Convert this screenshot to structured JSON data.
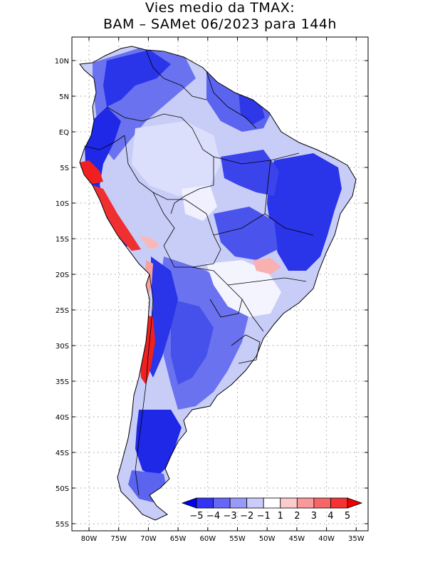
{
  "title": {
    "line1": "Vies medio da TMAX:",
    "line2": "BAM – SAMet 06/2023  para 144h"
  },
  "axes": {
    "x_ticks": [
      "80W",
      "75W",
      "70W",
      "65W",
      "60W",
      "55W",
      "50W",
      "45W",
      "40W",
      "35W"
    ],
    "y_ticks": [
      "10N",
      "5N",
      "EQ",
      "5S",
      "10S",
      "15S",
      "20S",
      "25S",
      "30S",
      "35S",
      "40S",
      "45S",
      "50S",
      "55S"
    ]
  },
  "colorbar": {
    "labels": [
      "−5",
      "−4",
      "−3",
      "−2",
      "−1",
      "1",
      "2",
      "3",
      "4",
      "5"
    ],
    "colors": [
      "#0000f0",
      "#3333f5",
      "#6666f7",
      "#9999fa",
      "#ccccfc",
      "#ffffff",
      "#fccccc",
      "#fa9999",
      "#f76666",
      "#f53333",
      "#f00000"
    ]
  },
  "palette": {
    "strong_blue": "#1e28e6",
    "mid_blue": "#5a64ee",
    "light_blue": "#a0a8f4",
    "pale_blue": "#d2d6fa",
    "red": "#f02020",
    "pink": "#f8a0a0",
    "border": "#000000"
  }
}
